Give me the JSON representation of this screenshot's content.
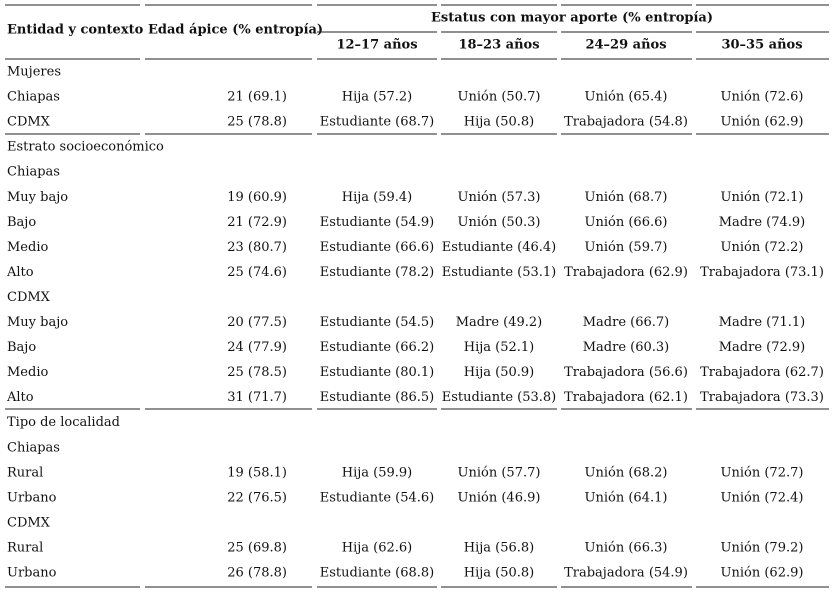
{
  "table": {
    "header": {
      "entity": "Entidad y contexto",
      "age": "Edad ápice (% entropía)",
      "status": "Estatus con mayor aporte (% entropía)",
      "groups": [
        "12–17 años",
        "18–23 años",
        "24–29 años",
        "30–35 años"
      ]
    },
    "rows": [
      [
        "Mujeres"
      ],
      [
        "Chiapas",
        "21 (69.1)",
        "Hija (57.2)",
        "Unión (50.7)",
        "Unión (65.4)",
        "Unión (72.6)"
      ],
      [
        "CDMX",
        "25 (78.8)",
        "Estudiante (68.7)",
        "Hija (50.8)",
        "Trabajadora (54.8)",
        "Unión (62.9)"
      ],
      [
        "Estrato socioeconómico"
      ],
      [
        "Chiapas"
      ],
      [
        "Muy bajo",
        "19 (60.9)",
        "Hija (59.4)",
        "Unión (57.3)",
        "Unión (68.7)",
        "Unión (72.1)"
      ],
      [
        "Bajo",
        "21 (72.9)",
        "Estudiante (54.9)",
        "Unión (50.3)",
        "Unión (66.6)",
        "Madre (74.9)"
      ],
      [
        "Medio",
        "23 (80.7)",
        "Estudiante (66.6)",
        "Estudiante (46.4)",
        "Unión (59.7)",
        "Unión (72.2)"
      ],
      [
        "Alto",
        "25 (74.6)",
        "Estudiante (78.2)",
        "Estudiante (53.1)",
        "Trabajadora (62.9)",
        "Trabajadora (73.1)"
      ],
      [
        "CDMX"
      ],
      [
        "Muy bajo",
        "20 (77.5)",
        "Estudiante (54.5)",
        "Madre (49.2)",
        "Madre (66.7)",
        "Madre (71.1)"
      ],
      [
        "Bajo",
        "24 (77.9)",
        "Estudiante (66.2)",
        "Hija (52.1)",
        "Madre (60.3)",
        "Madre (72.9)"
      ],
      [
        "Medio",
        "25 (78.5)",
        "Estudiante (80.1)",
        "Hija (50.9)",
        "Trabajadora (56.6)",
        "Trabajadora (62.7)"
      ],
      [
        "Alto",
        "31 (71.7)",
        "Estudiante (86.5)",
        "Estudiante (53.8)",
        "Trabajadora (62.1)",
        "Trabajadora (73.3)"
      ],
      [
        "Tipo de localidad"
      ],
      [
        "Chiapas"
      ],
      [
        "Rural",
        "19 (58.1)",
        "Hija (59.9)",
        "Unión (57.7)",
        "Unión (68.2)",
        "Unión (72.7)"
      ],
      [
        "Urbano",
        "22 (76.5)",
        "Estudiante (54.6)",
        "Unión (46.9)",
        "Unión (64.1)",
        "Unión (72.4)"
      ],
      [
        "CDMX"
      ],
      [
        "Rural",
        "25 (69.8)",
        "Hija (62.6)",
        "Hija (56.8)",
        "Unión (66.3)",
        "Unión (79.2)"
      ],
      [
        "Urbano",
        "26 (78.8)",
        "Estudiante (68.8)",
        "Hija (50.8)",
        "Trabajadora (54.9)",
        "Unión (62.9)"
      ]
    ]
  }
}
